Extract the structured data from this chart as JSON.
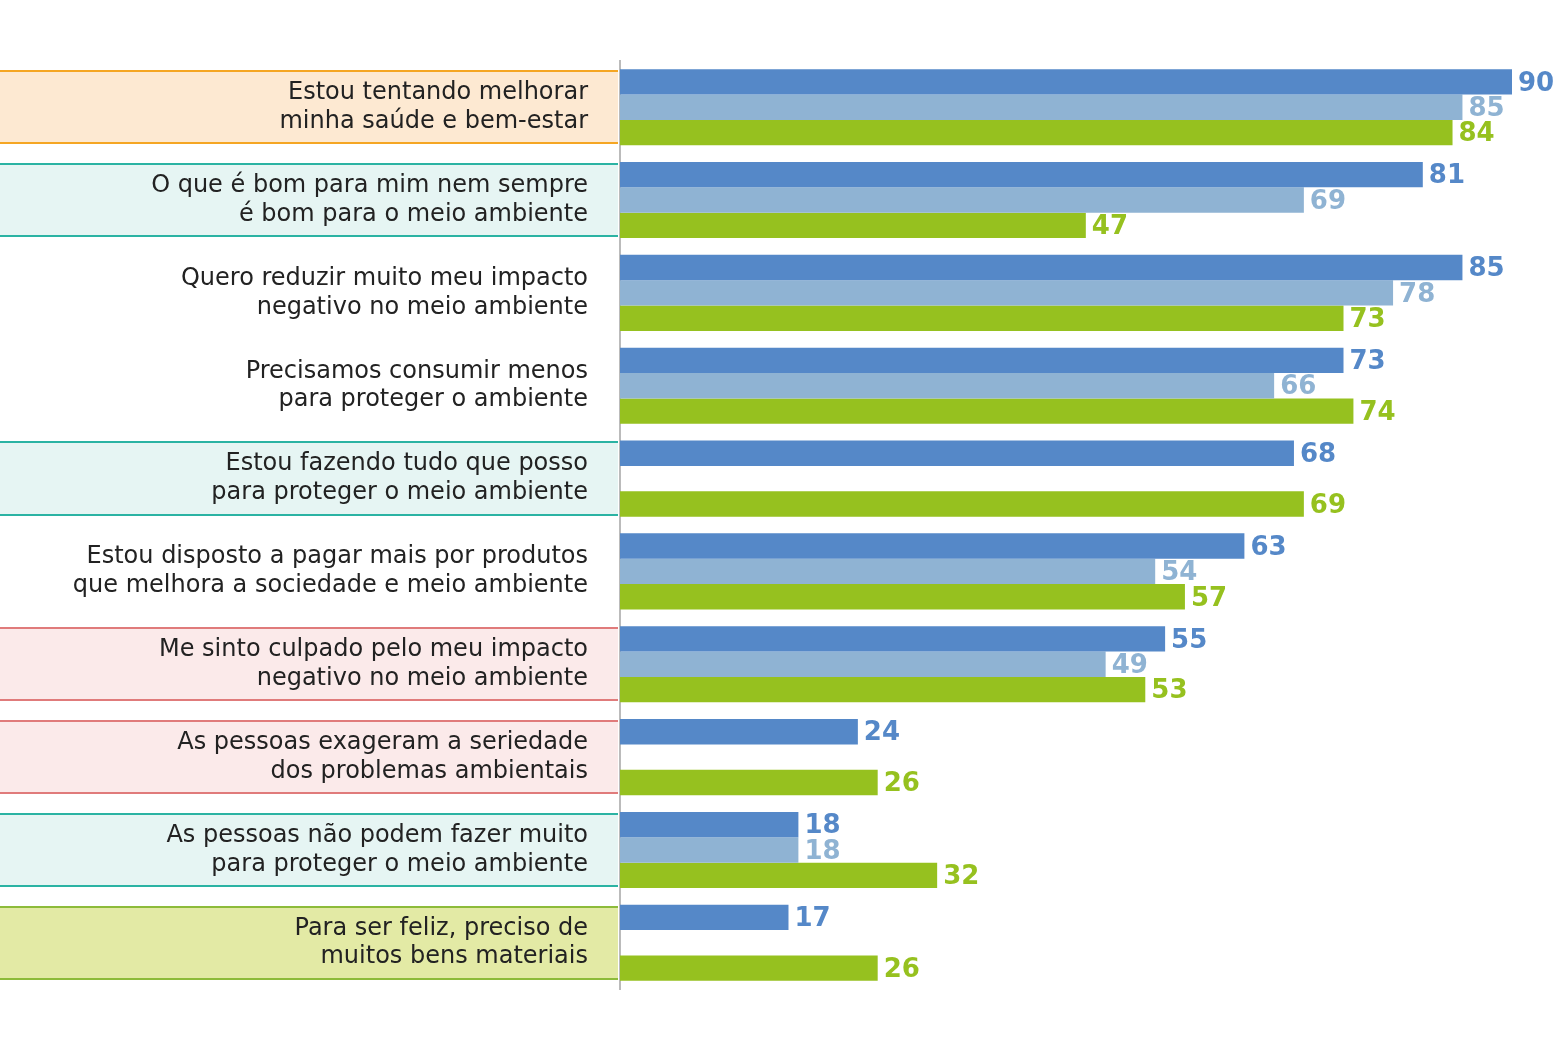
{
  "chart_data": {
    "type": "bar",
    "orientation": "horizontal",
    "categories": [
      "Estou tentando melhorar minha saúde e bem-estar",
      "O que é bom para mim nem sempre é bom para o meio ambiente",
      "Quero reduzir muito meu impacto negativo no meio ambiente",
      "Precisamos consumir menos para proteger o ambiente",
      "Estou fazendo tudo que posso para proteger o meio ambiente",
      "Estou disposto a pagar mais por produtos que melhora a sociedade e meio ambiente",
      "Me sinto culpado pelo meu impacto negativo no meio ambiente",
      "As pessoas exageram a seriedade dos problemas ambientais",
      "As pessoas não podem fazer muito para proteger o meio ambiente",
      "Para ser feliz, preciso de muitos bens materiais"
    ],
    "series": [
      {
        "color": "#5588c8",
        "values": [
          90,
          81,
          85,
          73,
          68,
          63,
          55,
          24,
          18,
          17
        ]
      },
      {
        "color": "#8fb3d3",
        "values": [
          85,
          69,
          78,
          66,
          null,
          54,
          49,
          null,
          18,
          null
        ]
      },
      {
        "color": "#96c11f",
        "values": [
          84,
          47,
          73,
          74,
          69,
          57,
          53,
          26,
          32,
          26
        ]
      }
    ],
    "data_labels": true,
    "legend": false,
    "grid": false
  }
}
